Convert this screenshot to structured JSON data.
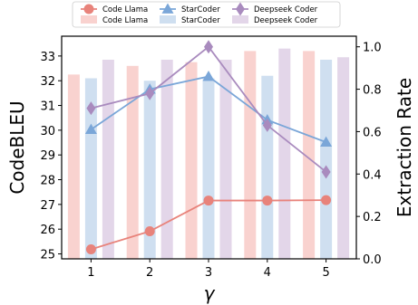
{
  "chart_data": {
    "type": "bar+line",
    "categories": [
      "1",
      "2",
      "3",
      "4",
      "5"
    ],
    "x": [
      1,
      2,
      3,
      4,
      5
    ],
    "xlabel": "γ",
    "ylabel_left": "CodeBLEU",
    "ylabel_right": "Extraction Rate",
    "ylim_left": [
      24.8,
      33.8
    ],
    "ylim_right": [
      0.0,
      1.05
    ],
    "yticks_left": [
      25,
      26,
      27,
      28,
      29,
      30,
      31,
      32,
      33
    ],
    "yticks_right": [
      0.0,
      0.2,
      0.4,
      0.6,
      0.8,
      1.0
    ],
    "ytick_labels_right": [
      "0.0",
      "0.2",
      "0.4",
      "0.6",
      "0.8",
      "1.0"
    ],
    "grid": false,
    "legend_position": "top",
    "bar_series": [
      {
        "name": "Code Llama",
        "axis": "left",
        "color": "#f9d2cf",
        "values": [
          32.25,
          32.6,
          32.75,
          33.2,
          33.2
        ]
      },
      {
        "name": "StarCoder",
        "axis": "left",
        "color": "#cfdff0",
        "values": [
          32.1,
          32.0,
          32.1,
          32.2,
          32.85
        ]
      },
      {
        "name": "Deepseek Coder",
        "axis": "left",
        "color": "#e3d6e9",
        "values": [
          32.85,
          32.85,
          32.85,
          33.3,
          32.95
        ]
      }
    ],
    "line_series": [
      {
        "name": "Code Llama",
        "axis": "right",
        "marker": "circle",
        "color": "#e8837b",
        "values": [
          0.045,
          0.13,
          0.275,
          0.275,
          0.277
        ]
      },
      {
        "name": "StarCoder",
        "axis": "right",
        "marker": "triangle",
        "color": "#7aa6d8",
        "values": [
          0.61,
          0.8,
          0.86,
          0.655,
          0.55
        ]
      },
      {
        "name": "Deepseek Coder",
        "axis": "right",
        "marker": "diamond",
        "color": "#a98bbe",
        "values": [
          0.71,
          0.78,
          1.0,
          0.63,
          0.41
        ]
      }
    ]
  }
}
